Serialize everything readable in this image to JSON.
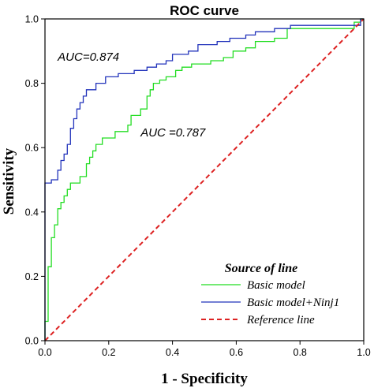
{
  "chart_data": {
    "type": "line",
    "title": "ROC curve",
    "xlabel": "1 - Specificity",
    "ylabel": "Sensitivity",
    "xlim": [
      0,
      1
    ],
    "ylim": [
      0,
      1
    ],
    "x_ticks": [
      "0.0",
      "0.2",
      "0.4",
      "0.6",
      "0.8",
      "1.0"
    ],
    "y_ticks": [
      "0.0",
      "0.2",
      "0.4",
      "0.6",
      "0.8",
      "1.0"
    ],
    "grid": false,
    "legend": {
      "title": "Source of line",
      "placement": "bottom-right",
      "entries": [
        "Basic model",
        "Basic model+Ninj1",
        "Reference line"
      ]
    },
    "annotations": [
      {
        "text": "AUC=0.874",
        "x": 0.04,
        "y": 0.87
      },
      {
        "text": "AUC =0.787",
        "x": 0.3,
        "y": 0.635
      }
    ],
    "series": [
      {
        "name": "Basic model",
        "color": "#22dd22",
        "style": "solid",
        "points": [
          [
            0,
            0
          ],
          [
            0,
            0.06
          ],
          [
            0.01,
            0.06
          ],
          [
            0.01,
            0.23
          ],
          [
            0.02,
            0.23
          ],
          [
            0.02,
            0.32
          ],
          [
            0.03,
            0.32
          ],
          [
            0.03,
            0.36
          ],
          [
            0.04,
            0.36
          ],
          [
            0.04,
            0.41
          ],
          [
            0.05,
            0.41
          ],
          [
            0.05,
            0.43
          ],
          [
            0.06,
            0.43
          ],
          [
            0.06,
            0.45
          ],
          [
            0.07,
            0.45
          ],
          [
            0.07,
            0.47
          ],
          [
            0.08,
            0.47
          ],
          [
            0.08,
            0.49
          ],
          [
            0.11,
            0.49
          ],
          [
            0.11,
            0.51
          ],
          [
            0.13,
            0.51
          ],
          [
            0.13,
            0.55
          ],
          [
            0.14,
            0.55
          ],
          [
            0.14,
            0.57
          ],
          [
            0.15,
            0.57
          ],
          [
            0.15,
            0.59
          ],
          [
            0.16,
            0.59
          ],
          [
            0.16,
            0.61
          ],
          [
            0.18,
            0.61
          ],
          [
            0.18,
            0.63
          ],
          [
            0.22,
            0.63
          ],
          [
            0.22,
            0.65
          ],
          [
            0.26,
            0.65
          ],
          [
            0.26,
            0.67
          ],
          [
            0.27,
            0.67
          ],
          [
            0.27,
            0.7
          ],
          [
            0.3,
            0.7
          ],
          [
            0.3,
            0.72
          ],
          [
            0.32,
            0.72
          ],
          [
            0.32,
            0.76
          ],
          [
            0.33,
            0.76
          ],
          [
            0.33,
            0.78
          ],
          [
            0.34,
            0.78
          ],
          [
            0.34,
            0.8
          ],
          [
            0.36,
            0.8
          ],
          [
            0.36,
            0.81
          ],
          [
            0.38,
            0.81
          ],
          [
            0.38,
            0.82
          ],
          [
            0.41,
            0.82
          ],
          [
            0.41,
            0.84
          ],
          [
            0.43,
            0.84
          ],
          [
            0.43,
            0.85
          ],
          [
            0.46,
            0.85
          ],
          [
            0.46,
            0.86
          ],
          [
            0.52,
            0.86
          ],
          [
            0.52,
            0.87
          ],
          [
            0.56,
            0.87
          ],
          [
            0.56,
            0.88
          ],
          [
            0.59,
            0.88
          ],
          [
            0.59,
            0.9
          ],
          [
            0.63,
            0.9
          ],
          [
            0.63,
            0.91
          ],
          [
            0.66,
            0.91
          ],
          [
            0.66,
            0.93
          ],
          [
            0.72,
            0.93
          ],
          [
            0.72,
            0.94
          ],
          [
            0.76,
            0.94
          ],
          [
            0.76,
            0.97
          ],
          [
            0.97,
            0.97
          ],
          [
            0.97,
            0.99
          ],
          [
            0.99,
            0.99
          ],
          [
            0.99,
            1.0
          ],
          [
            1.0,
            1.0
          ]
        ]
      },
      {
        "name": "Basic model+Ninj1",
        "color": "#2233bb",
        "style": "solid",
        "points": [
          [
            0,
            0
          ],
          [
            0,
            0.49
          ],
          [
            0.02,
            0.49
          ],
          [
            0.02,
            0.5
          ],
          [
            0.04,
            0.5
          ],
          [
            0.04,
            0.53
          ],
          [
            0.05,
            0.53
          ],
          [
            0.05,
            0.56
          ],
          [
            0.06,
            0.56
          ],
          [
            0.06,
            0.58
          ],
          [
            0.07,
            0.58
          ],
          [
            0.07,
            0.61
          ],
          [
            0.08,
            0.61
          ],
          [
            0.08,
            0.66
          ],
          [
            0.09,
            0.66
          ],
          [
            0.09,
            0.69
          ],
          [
            0.1,
            0.69
          ],
          [
            0.1,
            0.72
          ],
          [
            0.11,
            0.72
          ],
          [
            0.11,
            0.74
          ],
          [
            0.12,
            0.74
          ],
          [
            0.12,
            0.76
          ],
          [
            0.13,
            0.76
          ],
          [
            0.13,
            0.78
          ],
          [
            0.16,
            0.78
          ],
          [
            0.16,
            0.8
          ],
          [
            0.19,
            0.8
          ],
          [
            0.19,
            0.82
          ],
          [
            0.23,
            0.82
          ],
          [
            0.23,
            0.83
          ],
          [
            0.28,
            0.83
          ],
          [
            0.28,
            0.84
          ],
          [
            0.32,
            0.84
          ],
          [
            0.32,
            0.85
          ],
          [
            0.35,
            0.85
          ],
          [
            0.35,
            0.86
          ],
          [
            0.38,
            0.86
          ],
          [
            0.38,
            0.87
          ],
          [
            0.4,
            0.87
          ],
          [
            0.4,
            0.89
          ],
          [
            0.45,
            0.89
          ],
          [
            0.45,
            0.9
          ],
          [
            0.48,
            0.9
          ],
          [
            0.48,
            0.92
          ],
          [
            0.54,
            0.92
          ],
          [
            0.54,
            0.93
          ],
          [
            0.58,
            0.93
          ],
          [
            0.58,
            0.94
          ],
          [
            0.63,
            0.94
          ],
          [
            0.63,
            0.95
          ],
          [
            0.66,
            0.95
          ],
          [
            0.66,
            0.96
          ],
          [
            0.72,
            0.96
          ],
          [
            0.72,
            0.97
          ],
          [
            0.77,
            0.97
          ],
          [
            0.77,
            0.98
          ],
          [
            0.99,
            0.98
          ],
          [
            0.99,
            1.0
          ],
          [
            1.0,
            1.0
          ]
        ]
      },
      {
        "name": "Reference line",
        "color": "#dd2222",
        "style": "dashed",
        "points": [
          [
            0,
            0
          ],
          [
            1,
            1
          ]
        ]
      }
    ]
  }
}
